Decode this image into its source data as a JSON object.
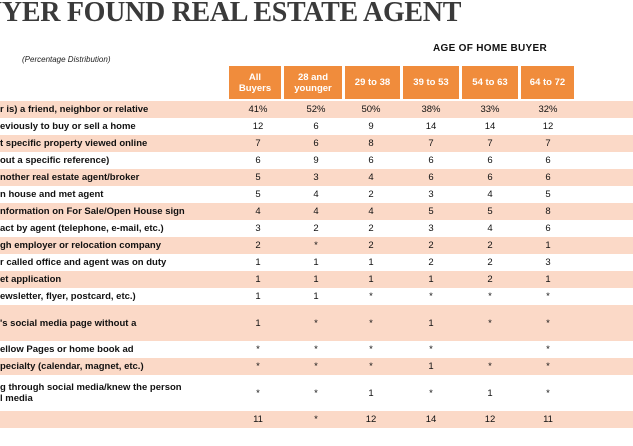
{
  "title": "UYER FOUND REAL ESTATE AGENT",
  "subtitle": "(Percentage Distribution)",
  "age_header": "AGE OF HOME BUYER",
  "columns": [
    "All\nBuyers",
    "28 and\nyounger",
    "29 to 38",
    "39 to 53",
    "54 to 63",
    "64 to 72"
  ],
  "rows": [
    {
      "label": "r is) a friend, neighbor or relative",
      "values": [
        "41%",
        "52%",
        "50%",
        "38%",
        "33%",
        "32%"
      ]
    },
    {
      "label": "eviously to buy or sell a home",
      "values": [
        "12",
        "6",
        "9",
        "14",
        "14",
        "12"
      ]
    },
    {
      "label": "t specific property viewed online",
      "values": [
        "7",
        "6",
        "8",
        "7",
        "7",
        "7"
      ]
    },
    {
      "label": "out a specific reference)",
      "values": [
        "6",
        "9",
        "6",
        "6",
        "6",
        "6"
      ]
    },
    {
      "label": "nother real estate agent/broker",
      "values": [
        "5",
        "3",
        "4",
        "6",
        "6",
        "6"
      ]
    },
    {
      "label": "n house and met agent",
      "values": [
        "5",
        "4",
        "2",
        "3",
        "4",
        "5"
      ]
    },
    {
      "label": "nformation on For Sale/Open House sign",
      "values": [
        "4",
        "4",
        "4",
        "5",
        "5",
        "8"
      ]
    },
    {
      "label": "act by agent (telephone, e-mail, etc.)",
      "values": [
        "3",
        "2",
        "2",
        "3",
        "4",
        "6"
      ]
    },
    {
      "label": "gh employer or relocation company",
      "values": [
        "2",
        "*",
        "2",
        "2",
        "2",
        "1"
      ]
    },
    {
      "label": "r called office and agent was on duty",
      "values": [
        "1",
        "1",
        "1",
        "2",
        "2",
        "3"
      ]
    },
    {
      "label": "et application",
      "values": [
        "1",
        "1",
        "1",
        "1",
        "2",
        "1"
      ]
    },
    {
      "label": "ewsletter, flyer, postcard, etc.)",
      "values": [
        "1",
        "1",
        "*",
        "*",
        "*",
        "*"
      ]
    },
    {
      "label": "'s social media page without a\n",
      "values": [
        "1",
        "*",
        "*",
        "1",
        "*",
        "*"
      ]
    },
    {
      "label": "ellow Pages or home book ad",
      "values": [
        "*",
        "*",
        "*",
        "*",
        "",
        "*"
      ]
    },
    {
      "label": "pecialty (calendar, magnet, etc.)",
      "values": [
        "*",
        "*",
        "*",
        "1",
        "*",
        "*"
      ]
    },
    {
      "label": "g through social media/knew the person\nl media",
      "values": [
        "*",
        "*",
        "1",
        "*",
        "1",
        "*"
      ]
    },
    {
      "label": "",
      "values": [
        "11",
        "*",
        "12",
        "14",
        "12",
        "11"
      ]
    }
  ]
}
